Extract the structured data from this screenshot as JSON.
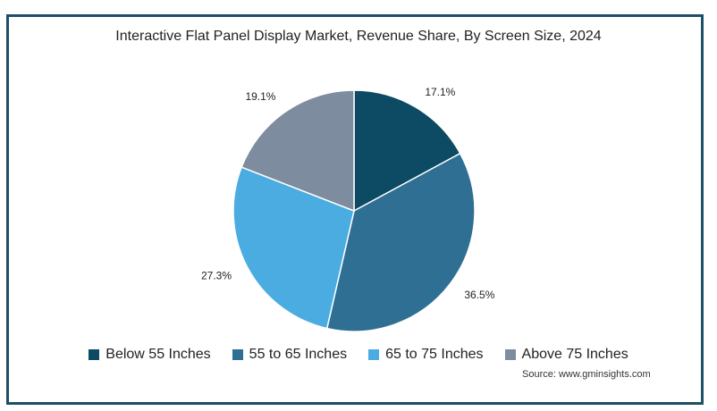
{
  "chart_data": {
    "type": "pie",
    "title": "Interactive Flat Panel Display Market, Revenue Share, By Screen Size, 2024",
    "slices": [
      {
        "label": "Below 55 Inches",
        "value": 17.1,
        "value_label": "17.1%",
        "color": "#0d4a63"
      },
      {
        "label": "55 to 65 Inches",
        "value": 36.5,
        "value_label": "36.5%",
        "color": "#2f6f93"
      },
      {
        "label": "65 to 75 Inches",
        "value": 27.3,
        "value_label": "27.3%",
        "color": "#4aace0"
      },
      {
        "label": "Above 75 Inches",
        "value": 19.1,
        "value_label": "19.1%",
        "color": "#7d8c9e"
      }
    ],
    "legend_position": "bottom",
    "source": "Source: www.gminsights.com"
  }
}
